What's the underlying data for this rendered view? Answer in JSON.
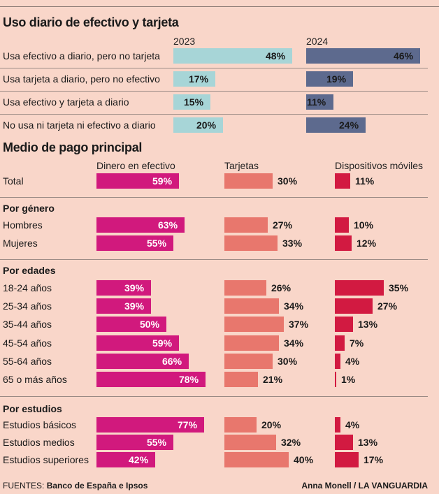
{
  "colors": {
    "bg": "#f9d6c9",
    "y2023": "#a7d5d7",
    "y2024": "#5d6a8e",
    "cash": "#d1197d",
    "cards": "#e8776d",
    "mobile": "#d21a41"
  },
  "title1": "Uso diario de efectivo y tarjeta",
  "title2": "Medio de pago principal",
  "chart_data": [
    {
      "type": "bar",
      "title": "Uso diario de efectivo y tarjeta",
      "categories": [
        "Usa efectivo a diario, pero no tarjeta",
        "Usa tarjeta a diario, pero no efectivo",
        "Usa efectivo y tarjeta a diario",
        "No usa ni tarjeta ni efectivo a diario"
      ],
      "series": [
        {
          "name": "2023",
          "values": [
            48,
            17,
            15,
            20
          ]
        },
        {
          "name": "2024",
          "values": [
            46,
            19,
            11,
            24
          ]
        }
      ],
      "unit": "%"
    },
    {
      "type": "bar",
      "title": "Medio de pago principal",
      "columns": [
        "Dinero en efectivo",
        "Tarjetas",
        "Dispositivos móviles"
      ],
      "groups": [
        {
          "name": "",
          "rows": [
            {
              "label": "Total",
              "values": [
                59,
                30,
                11
              ]
            }
          ]
        },
        {
          "name": "Por género",
          "rows": [
            {
              "label": "Hombres",
              "values": [
                63,
                27,
                10
              ]
            },
            {
              "label": "Mujeres",
              "values": [
                55,
                33,
                12
              ]
            }
          ]
        },
        {
          "name": "Por edades",
          "rows": [
            {
              "label": "18-24 años",
              "values": [
                39,
                26,
                35
              ]
            },
            {
              "label": "25-34 años",
              "values": [
                39,
                34,
                27
              ]
            },
            {
              "label": "35-44 años",
              "values": [
                50,
                37,
                13
              ]
            },
            {
              "label": "45-54 años",
              "values": [
                59,
                34,
                7
              ]
            },
            {
              "label": "55-64 años",
              "values": [
                66,
                30,
                4
              ]
            },
            {
              "label": "65 o más años",
              "values": [
                78,
                21,
                1
              ]
            }
          ]
        },
        {
          "name": "Por estudios",
          "rows": [
            {
              "label": "Estudios básicos",
              "values": [
                77,
                20,
                4
              ]
            },
            {
              "label": "Estudios medios",
              "values": [
                55,
                32,
                13
              ]
            },
            {
              "label": "Estudios superiores",
              "values": [
                42,
                40,
                17
              ]
            }
          ]
        }
      ],
      "unit": "%"
    }
  ],
  "footer": {
    "sources_prefix": "FUENTES:",
    "sources": "Banco de España e Ipsos",
    "credit": "Anna Monell / LA VANGUARDIA"
  }
}
